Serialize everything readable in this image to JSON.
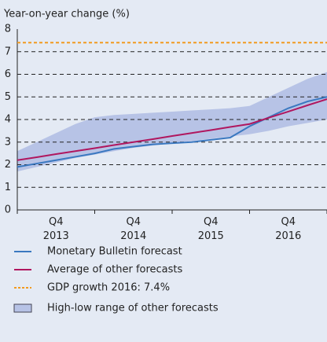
{
  "chart_data": {
    "type": "line",
    "y_label": "Year-on-year change (%)",
    "x": [
      0,
      1,
      2,
      3,
      4,
      5,
      6,
      7,
      8,
      9,
      10,
      11,
      12,
      13,
      14,
      15,
      16
    ],
    "xlim": [
      0,
      16
    ],
    "xticks": [
      {
        "value": 2,
        "label": "Q4 2013"
      },
      {
        "value": 6,
        "label": "Q4 2014"
      },
      {
        "value": 10,
        "label": "Q4 2015"
      },
      {
        "value": 14,
        "label": "Q4 2016"
      }
    ],
    "ylim": [
      0,
      8
    ],
    "yticks": [
      0,
      1,
      2,
      3,
      4,
      5,
      6,
      7,
      8
    ],
    "grid": true,
    "series": [
      {
        "name": "Monetary Bulletin forecast",
        "color": "#3a78c0",
        "values": [
          1.9,
          2.05,
          2.2,
          2.35,
          2.5,
          2.7,
          2.8,
          2.9,
          2.95,
          3.0,
          3.1,
          3.2,
          3.7,
          4.1,
          4.5,
          4.8,
          5.0
        ]
      },
      {
        "name": "Average of other forecasts",
        "color": "#b0175f",
        "values": [
          2.2,
          2.33,
          2.47,
          2.6,
          2.73,
          2.87,
          3.0,
          3.13,
          3.27,
          3.4,
          3.53,
          3.67,
          3.8,
          4.08,
          4.35,
          4.63,
          4.9
        ]
      }
    ],
    "reference_lines": [
      {
        "name": "GDP growth 2016: 7.4%",
        "value": 7.4,
        "color": "#f29a1f"
      }
    ],
    "band": {
      "name": "High-low range of other forecasts",
      "color": "#b7c3e6",
      "high": [
        2.6,
        3.0,
        3.4,
        3.8,
        4.1,
        4.2,
        4.25,
        4.3,
        4.35,
        4.4,
        4.45,
        4.5,
        4.6,
        5.0,
        5.4,
        5.8,
        6.1
      ],
      "low": [
        1.7,
        1.9,
        2.1,
        2.3,
        2.45,
        2.6,
        2.75,
        2.85,
        2.95,
        3.05,
        3.15,
        3.25,
        3.35,
        3.5,
        3.7,
        3.85,
        4.0
      ]
    }
  }
}
